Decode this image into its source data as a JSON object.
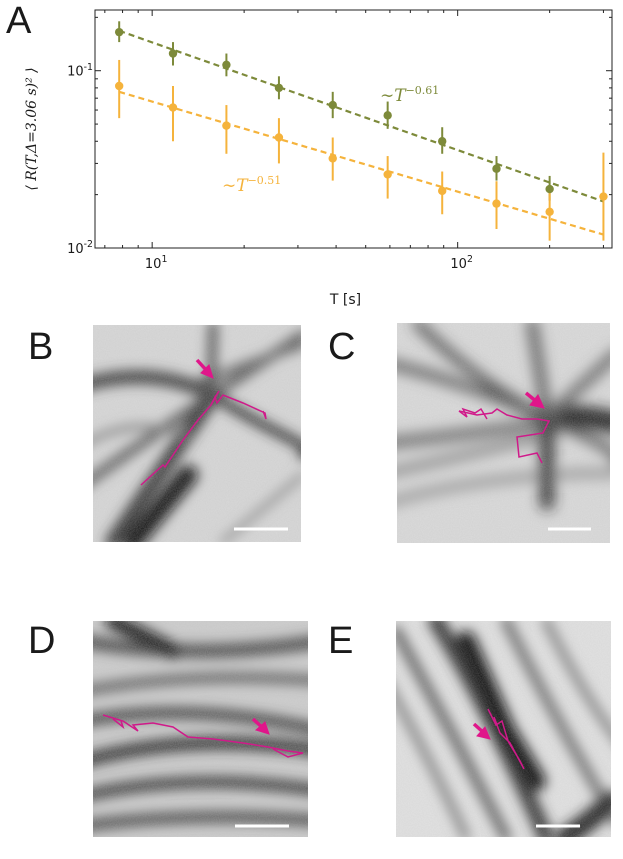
{
  "panel_labels": [
    "A",
    "B",
    "C",
    "D",
    "E"
  ],
  "chart_data": {
    "type": "scatter",
    "xscale": "log",
    "yscale": "log",
    "xlabel": "T [s]",
    "ylabel": "⟨ R(T,Δ=3.06 s)² ⟩",
    "xlim": [
      6.5,
      320
    ],
    "ylim": [
      0.01,
      0.22
    ],
    "x_tick_labels": [
      {
        "value": 10,
        "base": "10",
        "exp": "1"
      },
      {
        "value": 100,
        "base": "10",
        "exp": "2"
      }
    ],
    "y_tick_labels": [
      {
        "value": 0.01,
        "base": "10",
        "exp": "-2"
      },
      {
        "value": 0.1,
        "base": "10",
        "exp": "-1"
      }
    ],
    "series": [
      {
        "name": "~T^-0.61",
        "annotation_prefix": "∼T",
        "annotation_exp": "−0.61",
        "color": "#7d8a3a",
        "x": [
          7.8,
          11.7,
          17.5,
          26,
          39,
          59,
          89,
          134,
          200
        ],
        "y": [
          0.165,
          0.125,
          0.108,
          0.08,
          0.064,
          0.056,
          0.04,
          0.028,
          0.0215
        ],
        "yerr_low": [
          0.02,
          0.018,
          0.015,
          0.011,
          0.01,
          0.009,
          0.006,
          0.004,
          0.003
        ],
        "yerr_high": [
          0.025,
          0.02,
          0.017,
          0.013,
          0.012,
          0.011,
          0.008,
          0.005,
          0.004
        ],
        "fit": {
          "x": [
            7.8,
            300
          ],
          "y": [
            0.168,
            0.0183
          ]
        }
      },
      {
        "name": "~T^-0.51",
        "annotation_prefix": "∼T",
        "annotation_exp": "−0.51",
        "color": "#f5b33c",
        "x": [
          7.8,
          11.7,
          17.5,
          26,
          39,
          59,
          89,
          134,
          200,
          300
        ],
        "y": [
          0.082,
          0.062,
          0.049,
          0.042,
          0.032,
          0.026,
          0.021,
          0.0178,
          0.016,
          0.0195
        ],
        "yerr_low": [
          0.028,
          0.022,
          0.015,
          0.012,
          0.008,
          0.007,
          0.0055,
          0.005,
          0.005,
          0.0085
        ],
        "yerr_high": [
          0.033,
          0.02,
          0.015,
          0.012,
          0.01,
          0.007,
          0.006,
          0.006,
          0.005,
          0.015
        ],
        "fit": {
          "x": [
            7.8,
            300
          ],
          "y": [
            0.076,
            0.0119
          ]
        }
      }
    ]
  },
  "micrographs": [
    {
      "id": "B",
      "arrow_color": "#e0168a",
      "trajectory_color": "#d01a8a"
    },
    {
      "id": "C",
      "arrow_color": "#e0168a",
      "trajectory_color": "#d01a8a"
    },
    {
      "id": "D",
      "arrow_color": "#e0168a",
      "trajectory_color": "#d01a8a"
    },
    {
      "id": "E",
      "arrow_color": "#e0168a",
      "trajectory_color": "#d01a8a"
    }
  ]
}
